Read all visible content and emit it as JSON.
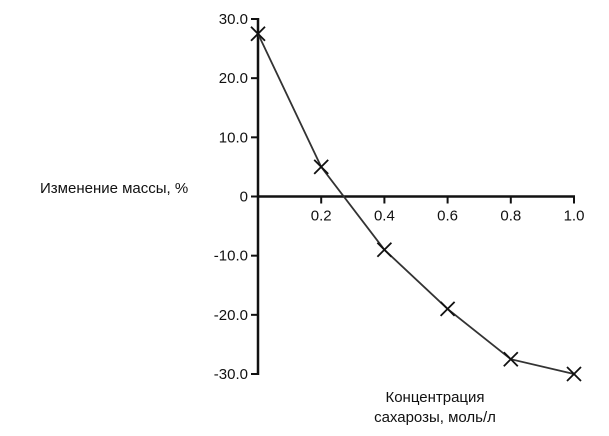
{
  "chart_data": {
    "type": "line",
    "title": "",
    "xlabel_lines": [
      "Концентрация",
      "сахарозы, моль/л"
    ],
    "ylabel": "Изменение массы, %",
    "x": [
      0.0,
      0.2,
      0.4,
      0.6,
      0.8,
      1.0
    ],
    "y": [
      27.5,
      5.0,
      -9.0,
      -19.0,
      -27.5,
      -30.0
    ],
    "xlim": [
      0,
      1.0
    ],
    "ylim": [
      -30,
      30
    ],
    "xticks": [
      0.2,
      0.4,
      0.6,
      0.8,
      1.0
    ],
    "xtick_labels": [
      "0.2",
      "0.4",
      "0.6",
      "0.8",
      "1.0"
    ],
    "yticks": [
      30,
      20,
      10,
      0,
      -10,
      -20,
      -30
    ],
    "ytick_labels": [
      "30.0",
      "20.0",
      "10.0",
      "0",
      "-10.0",
      "-20.0",
      "-30.0"
    ],
    "marker": "cross",
    "grid": false,
    "line_color": "#333333"
  }
}
